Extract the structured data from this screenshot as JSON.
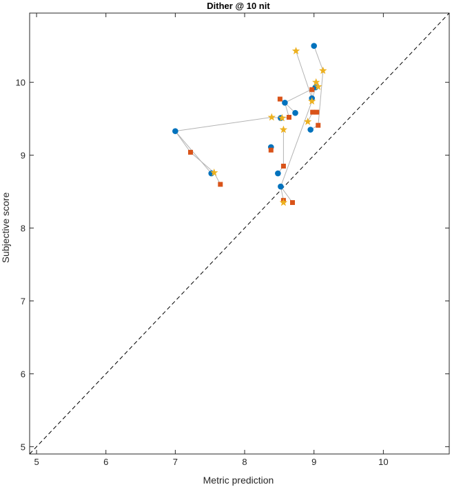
{
  "chart_data": {
    "type": "scatter",
    "title": "Dither @ 10 nit",
    "xlabel": "Metric prediction",
    "ylabel": "Subjective score",
    "xlim": [
      4.9,
      10.95
    ],
    "ylim": [
      4.9,
      10.95
    ],
    "xticks": [
      5,
      6,
      7,
      8,
      9,
      10
    ],
    "yticks": [
      5,
      6,
      7,
      8,
      9,
      10
    ],
    "grid": false,
    "reference_line": {
      "style": "dashed",
      "color": "#000000",
      "description": "y = x"
    },
    "connector_color": "#b3b3b3",
    "series": [
      {
        "marker": "circle",
        "color": "#0072bd",
        "points": [
          [
            7.0,
            9.33
          ],
          [
            7.52,
            8.75
          ],
          [
            8.38,
            9.11
          ],
          [
            8.48,
            8.75
          ],
          [
            8.52,
            8.57
          ],
          [
            8.52,
            9.51
          ],
          [
            8.58,
            9.72
          ],
          [
            8.73,
            9.58
          ],
          [
            8.95,
            9.35
          ],
          [
            8.97,
            9.78
          ],
          [
            9.0,
            10.5
          ],
          [
            9.02,
            9.93
          ]
        ]
      },
      {
        "marker": "square",
        "color": "#d95319",
        "points": [
          [
            7.22,
            9.04
          ],
          [
            7.65,
            8.6
          ],
          [
            8.38,
            9.07
          ],
          [
            8.51,
            9.77
          ],
          [
            8.56,
            8.85
          ],
          [
            8.56,
            8.38
          ],
          [
            8.64,
            9.52
          ],
          [
            8.69,
            8.35
          ],
          [
            8.97,
            9.9
          ],
          [
            8.98,
            9.59
          ],
          [
            9.04,
            9.59
          ],
          [
            9.06,
            9.41
          ]
        ]
      },
      {
        "marker": "star",
        "color": "#edb120",
        "points": [
          [
            7.56,
            8.76
          ],
          [
            8.39,
            9.52
          ],
          [
            8.54,
            9.51
          ],
          [
            8.56,
            9.35
          ],
          [
            8.56,
            8.35
          ],
          [
            8.74,
            10.43
          ],
          [
            8.91,
            9.46
          ],
          [
            8.97,
            9.74
          ],
          [
            9.03,
            10.0
          ],
          [
            9.06,
            9.94
          ],
          [
            9.13,
            10.16
          ]
        ]
      }
    ],
    "connectors": [
      [
        [
          7.0,
          9.33
        ],
        [
          7.52,
          8.75
        ],
        [
          7.56,
          8.76
        ],
        [
          7.65,
          8.6
        ]
      ],
      [
        [
          7.0,
          9.33
        ],
        [
          7.22,
          9.04
        ],
        [
          7.56,
          8.76
        ]
      ],
      [
        [
          7.0,
          9.33
        ],
        [
          8.39,
          9.52
        ],
        [
          8.52,
          9.51
        ],
        [
          8.54,
          9.51
        ]
      ],
      [
        [
          8.38,
          9.11
        ],
        [
          8.38,
          9.07
        ]
      ],
      [
        [
          8.48,
          8.75
        ],
        [
          8.56,
          8.85
        ],
        [
          8.56,
          9.35
        ]
      ],
      [
        [
          8.56,
          8.38
        ],
        [
          8.52,
          8.57
        ],
        [
          8.69,
          8.35
        ]
      ],
      [
        [
          8.52,
          8.57
        ],
        [
          8.97,
          9.74
        ],
        [
          9.02,
          9.93
        ]
      ],
      [
        [
          8.52,
          9.51
        ],
        [
          8.64,
          9.52
        ],
        [
          8.58,
          9.72
        ],
        [
          8.51,
          9.77
        ]
      ],
      [
        [
          8.58,
          9.72
        ],
        [
          8.73,
          9.58
        ]
      ],
      [
        [
          8.58,
          9.72
        ],
        [
          9.02,
          9.93
        ],
        [
          9.06,
          9.94
        ],
        [
          9.03,
          10.0
        ]
      ],
      [
        [
          8.74,
          10.43
        ],
        [
          8.97,
          9.78
        ],
        [
          8.97,
          9.9
        ]
      ],
      [
        [
          9.0,
          10.5
        ],
        [
          9.13,
          10.16
        ],
        [
          9.06,
          9.41
        ],
        [
          8.95,
          9.35
        ]
      ],
      [
        [
          8.91,
          9.46
        ],
        [
          8.98,
          9.59
        ],
        [
          9.04,
          9.59
        ]
      ]
    ]
  }
}
